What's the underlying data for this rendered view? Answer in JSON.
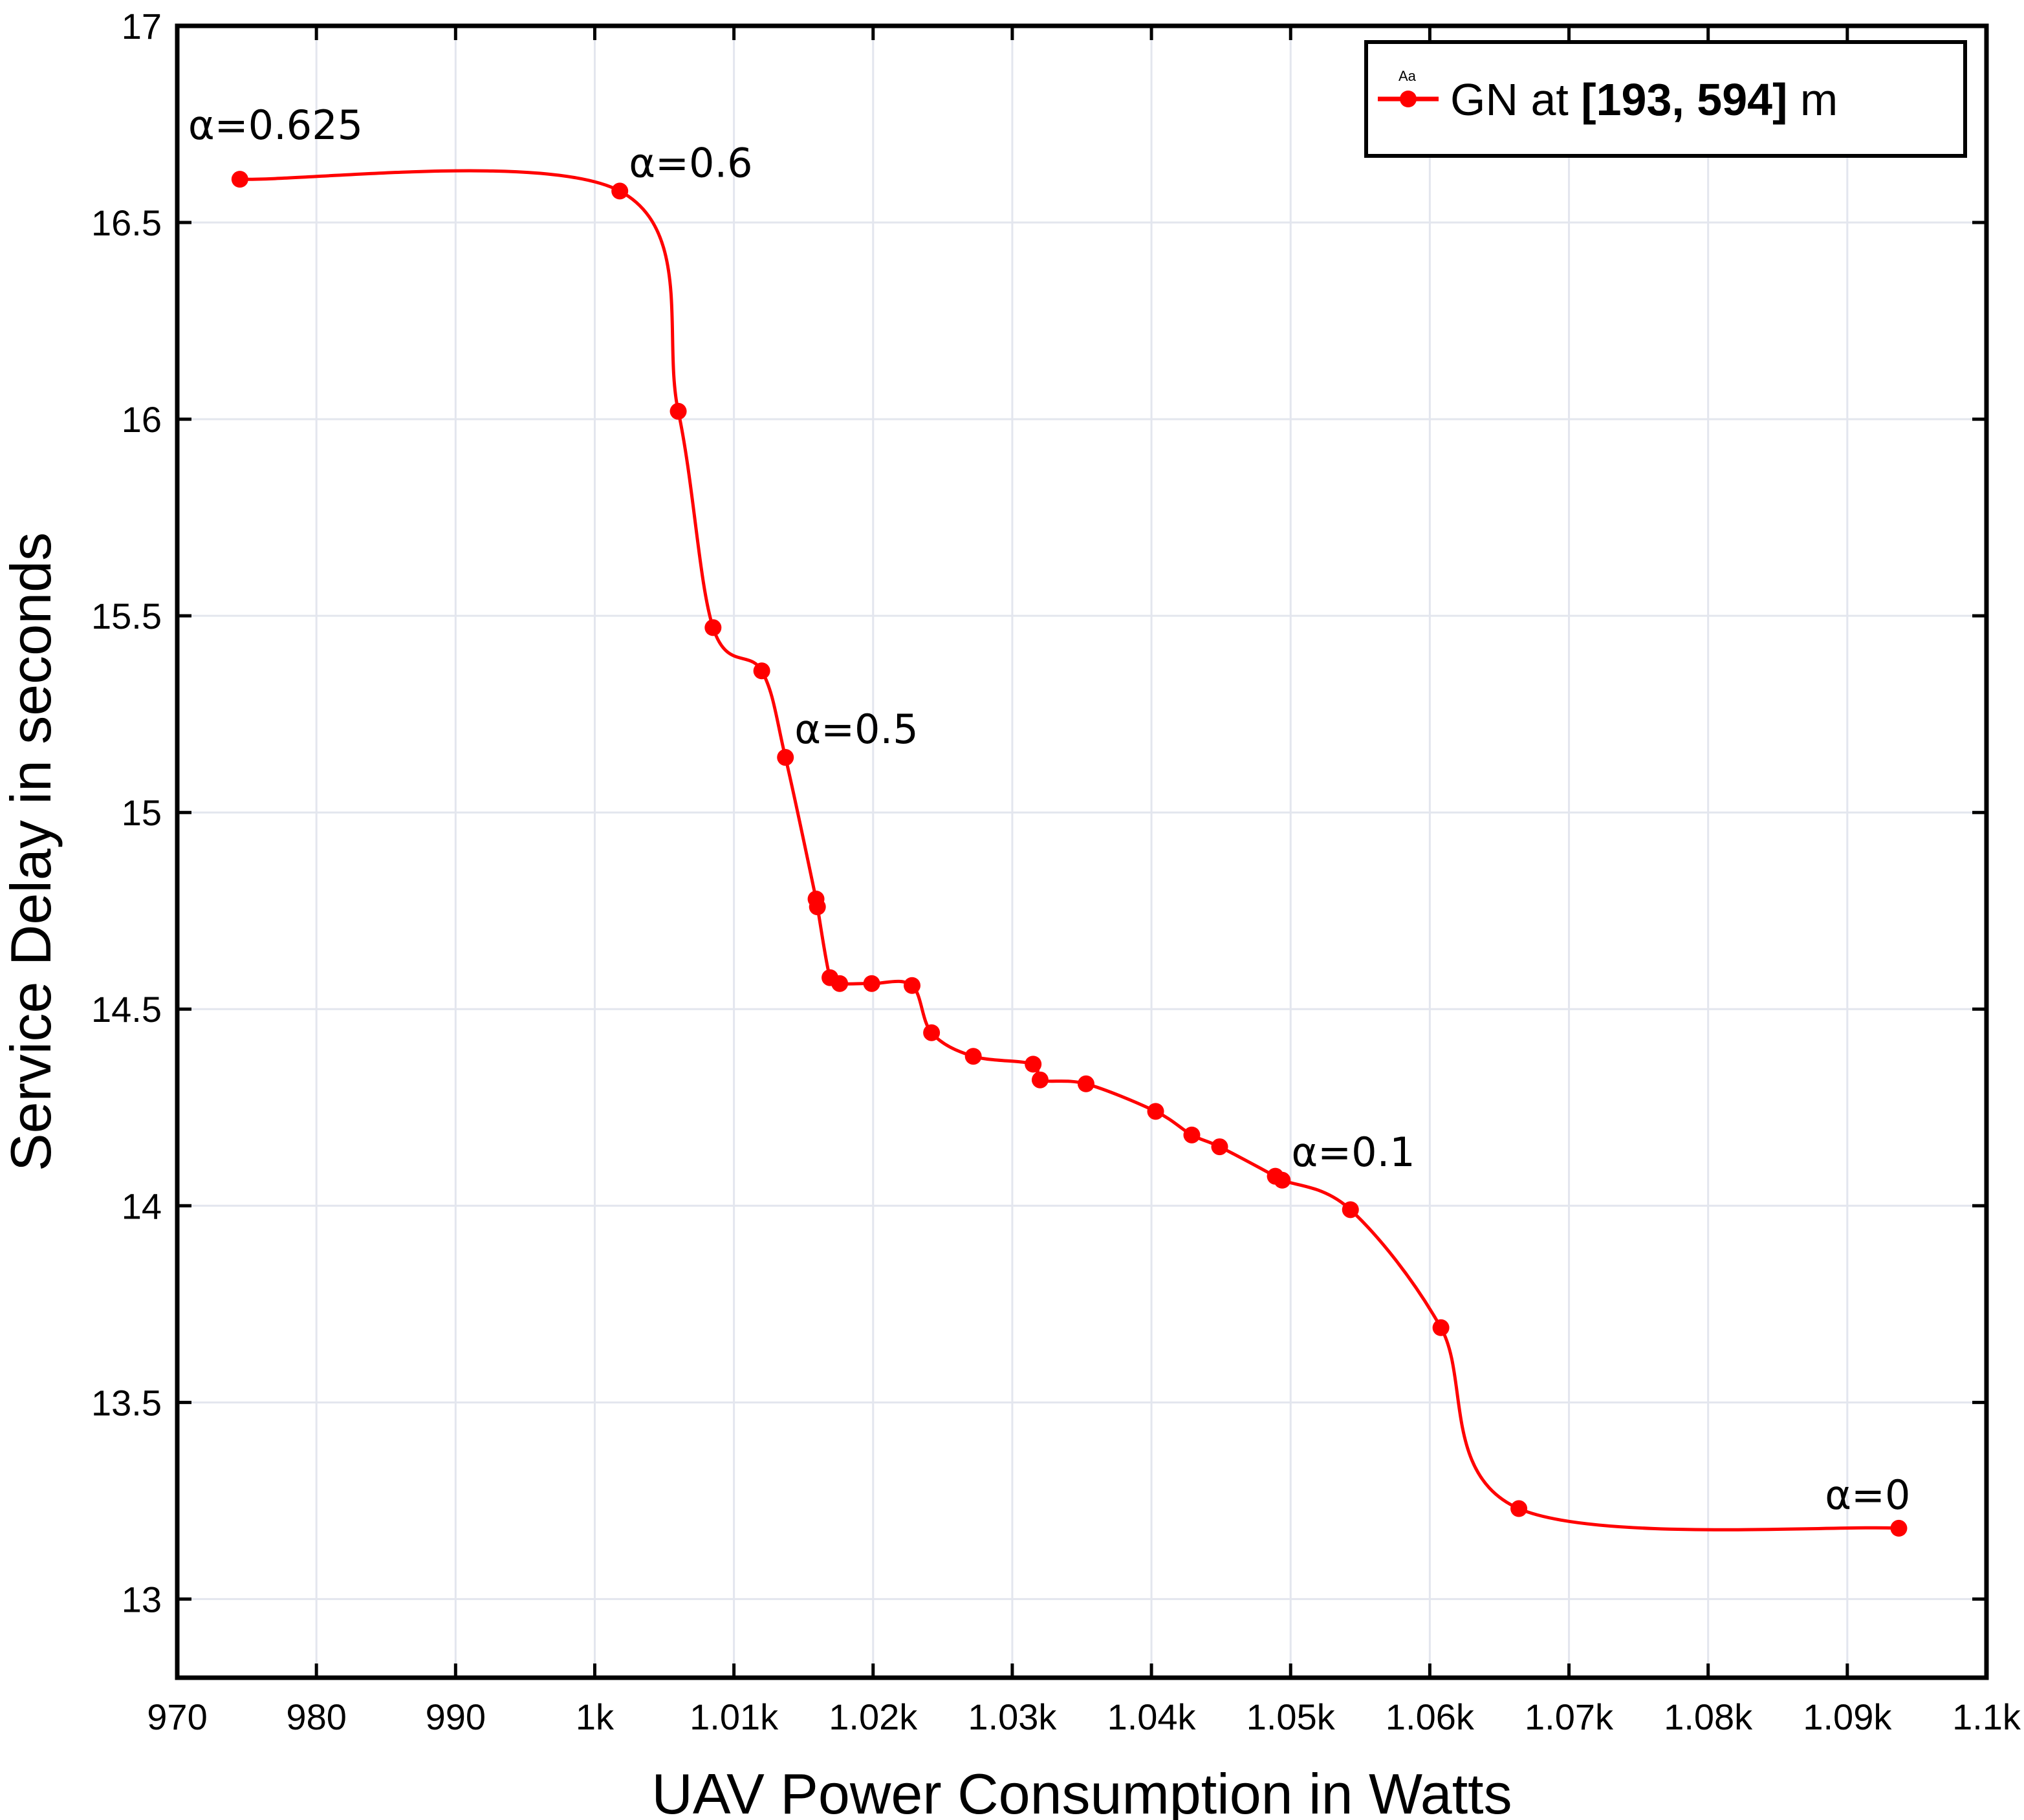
{
  "chart_data": {
    "type": "line",
    "xlabel": "UAV Power Consumption in Watts",
    "ylabel": "Service Delay in seconds",
    "xlim": [
      970,
      1100
    ],
    "ylim": [
      12.8,
      17
    ],
    "grid": true,
    "x_ticks": [
      970,
      980,
      990,
      1000,
      1010,
      1020,
      1030,
      1040,
      1050,
      1060,
      1070,
      1080,
      1090,
      1100
    ],
    "x_tick_labels": [
      "970",
      "980",
      "990",
      "1k",
      "1.01k",
      "1.02k",
      "1.03k",
      "1.04k",
      "1.05k",
      "1.06k",
      "1.07k",
      "1.08k",
      "1.09k",
      "1.1k"
    ],
    "y_ticks": [
      13,
      13.5,
      14,
      14.5,
      15,
      15.5,
      16,
      16.5,
      17
    ],
    "y_tick_labels": [
      "13",
      "13.5",
      "14",
      "14.5",
      "15",
      "15.5",
      "16",
      "16.5",
      "17"
    ],
    "legend": {
      "position": "top-right",
      "marker_text": "Aa",
      "prefix": "GN at ",
      "bold": "[193, 594]",
      "suffix": " m"
    },
    "color": "#ff0000",
    "series": [
      {
        "name": "GN at [193, 594] m",
        "points": [
          [
            974.5,
            16.61
          ],
          [
            1001.8,
            16.58
          ],
          [
            1006.0,
            16.02
          ],
          [
            1008.5,
            15.47
          ],
          [
            1012.0,
            15.36
          ],
          [
            1013.7,
            15.14
          ],
          [
            1015.9,
            14.78
          ],
          [
            1016.0,
            14.76
          ],
          [
            1016.9,
            14.58
          ],
          [
            1017.6,
            14.565
          ],
          [
            1019.9,
            14.565
          ],
          [
            1022.8,
            14.56
          ],
          [
            1024.2,
            14.44
          ],
          [
            1027.2,
            14.38
          ],
          [
            1031.5,
            14.36
          ],
          [
            1032.0,
            14.32
          ],
          [
            1035.3,
            14.31
          ],
          [
            1040.3,
            14.24
          ],
          [
            1042.9,
            14.18
          ],
          [
            1044.9,
            14.15
          ],
          [
            1048.9,
            14.075
          ],
          [
            1049.4,
            14.065
          ],
          [
            1054.3,
            13.99
          ],
          [
            1060.8,
            13.69
          ],
          [
            1066.4,
            13.23
          ],
          [
            1093.7,
            13.18
          ]
        ]
      }
    ],
    "annotations": [
      {
        "text": "α=0.625",
        "x": 974.5,
        "y": 16.61
      },
      {
        "text": "α=0.6",
        "x": 1001.8,
        "y": 16.58
      },
      {
        "text": "α=0.5",
        "x": 1013.7,
        "y": 15.14
      },
      {
        "text": "α=0.1",
        "x": 1049.4,
        "y": 14.065
      },
      {
        "text": "α=0",
        "x": 1093.7,
        "y": 13.18
      }
    ]
  }
}
